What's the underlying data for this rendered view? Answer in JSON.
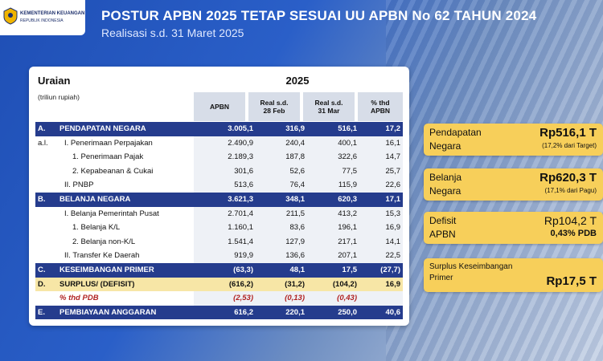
{
  "header": {
    "logo_line1": "KEMENTERIAN KEUANGAN",
    "logo_line2": "REPUBLIK INDONESIA",
    "title": "POSTUR APBN 2025 TETAP SESUAI UU APBN No 62 TAHUN 2024",
    "subtitle": "Realisasi s.d. 31 Maret 2025"
  },
  "table": {
    "uraian": "Uraian",
    "unit": "(triliun rupiah)",
    "year": "2025",
    "columns": {
      "c1": "APBN",
      "c2_line1": "Real s.d.",
      "c2_line2": "28 Feb",
      "c3_line1": "Real s.d.",
      "c3_line2": "31 Mar",
      "c4_line1": "% thd",
      "c4_line2": "APBN"
    },
    "rows": [
      {
        "letter": "A.",
        "label": "PENDAPATAN NEGARA",
        "v1": "3.005,1",
        "v2": "316,9",
        "v3": "516,1",
        "v4": "17,2"
      },
      {
        "letter": "a.l.",
        "label": "I. Penerimaan Perpajakan",
        "v1": "2.490,9",
        "v2": "240,4",
        "v3": "400,1",
        "v4": "16,1"
      },
      {
        "letter": "",
        "label": "1.   Penerimaan Pajak",
        "v1": "2.189,3",
        "v2": "187,8",
        "v3": "322,6",
        "v4": "14,7"
      },
      {
        "letter": "",
        "label": "2.   Kepabeanan & Cukai",
        "v1": "301,6",
        "v2": "52,6",
        "v3": "77,5",
        "v4": "25,7"
      },
      {
        "letter": "",
        "label": "II. PNBP",
        "v1": "513,6",
        "v2": "76,4",
        "v3": "115,9",
        "v4": "22,6"
      },
      {
        "letter": "B.",
        "label": "BELANJA NEGARA",
        "v1": "3.621,3",
        "v2": "348,1",
        "v3": "620,3",
        "v4": "17,1"
      },
      {
        "letter": "",
        "label": "I. Belanja Pemerintah Pusat",
        "v1": "2.701,4",
        "v2": "211,5",
        "v3": "413,2",
        "v4": "15,3"
      },
      {
        "letter": "",
        "label": "1.   Belanja K/L",
        "v1": "1.160,1",
        "v2": "83,6",
        "v3": "196,1",
        "v4": "16,9"
      },
      {
        "letter": "",
        "label": "2.   Belanja non-K/L",
        "v1": "1.541,4",
        "v2": "127,9",
        "v3": "217,1",
        "v4": "14,1"
      },
      {
        "letter": "",
        "label": "II. Transfer Ke Daerah",
        "v1": "919,9",
        "v2": "136,6",
        "v3": "207,1",
        "v4": "22,5"
      },
      {
        "letter": "C.",
        "label": "KESEIMBANGAN PRIMER",
        "v1": "(63,3)",
        "v2": "48,1",
        "v3": "17,5",
        "v4": "(27,7)"
      },
      {
        "letter": "D.",
        "label": "SURPLUS/ (DEFISIT)",
        "v1": "(616,2)",
        "v2": "(31,2)",
        "v3": "(104,2)",
        "v4": "16,9"
      },
      {
        "letter": "",
        "label": "% thd PDB",
        "v1": "(2,53)",
        "v2": "(0,13)",
        "v3": "(0,43)",
        "v4": ""
      },
      {
        "letter": "E.",
        "label": "PEMBIAYAAN ANGGARAN",
        "v1": "616,2",
        "v2": "220,1",
        "v3": "250,0",
        "v4": "40,6"
      }
    ]
  },
  "summary": {
    "pendapatan": {
      "line1": "Pendapatan",
      "line2": "Negara",
      "value": "Rp516,1 T",
      "note": "(17,2% dari Target)"
    },
    "belanja": {
      "line1": "Belanja",
      "line2": "Negara",
      "value": "Rp620,3 T",
      "note": "(17,1% dari Pagu)"
    },
    "defisit": {
      "line1": "Defisit",
      "line2": "APBN",
      "value": "Rp104,2 T",
      "note": "0,43% PDB"
    },
    "surplus": {
      "line1": "Surplus Keseimbangan",
      "line2": "Primer",
      "value": "Rp17,5 T"
    }
  }
}
